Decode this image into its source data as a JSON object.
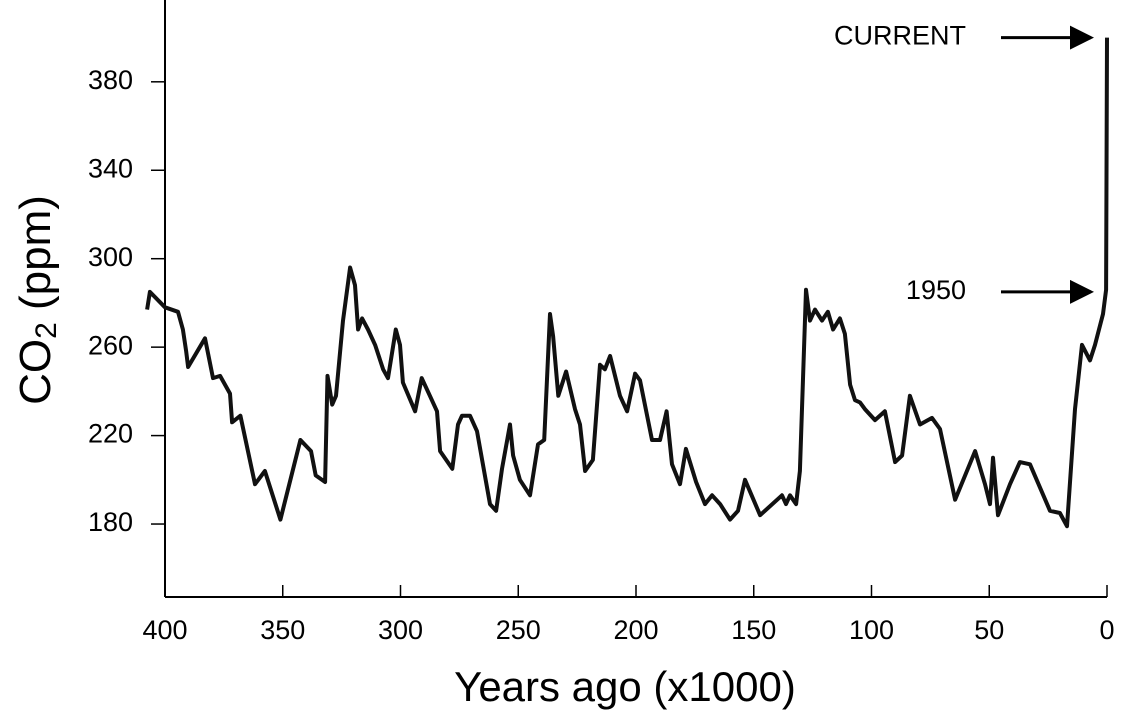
{
  "chart_data": {
    "type": "line",
    "x_label": "Years ago (x1000)",
    "y_label": [
      "CO",
      "2",
      " (ppm)"
    ],
    "xlim": [
      400,
      0
    ],
    "xticks": [
      400,
      350,
      300,
      250,
      200,
      150,
      100,
      50,
      0
    ],
    "ylim": [
      147,
      417
    ],
    "yticks": [
      180,
      220,
      260,
      300,
      340,
      380
    ],
    "color": "#111111",
    "x": [
      407.6,
      406.4,
      400,
      394.5,
      392.4,
      391,
      390.2,
      383,
      379.6,
      376.6,
      372.4,
      371.5,
      368,
      361.8,
      357.6,
      351,
      342.5,
      338,
      336,
      332,
      331,
      329,
      327.4,
      324.4,
      321.4,
      319.3,
      318,
      316.3,
      313.8,
      310.8,
      307.4,
      305.3,
      302,
      300.2,
      299,
      293.8,
      291,
      287.5,
      284.5,
      283.2,
      278,
      275.6,
      273.9,
      270.5,
      267.5,
      262,
      259.4,
      256.9,
      253.5,
      252.2,
      249.3,
      245,
      241.6,
      239,
      236.5,
      235.2,
      233,
      229.7,
      225.9,
      223.8,
      221.6,
      218.3,
      215.3,
      213.2,
      211,
      206.8,
      203.8,
      200.4,
      198.3,
      193.2,
      189.8,
      187,
      184.7,
      181.3,
      178.8,
      174.5,
      170.7,
      167.7,
      164.3,
      160.1,
      156.7,
      153.7,
      147.3,
      138,
      136.3,
      134.6,
      132,
      130.4,
      127.8,
      126.1,
      124,
      121,
      118.5,
      116.3,
      113.4,
      111.3,
      109.1,
      107,
      104.9,
      102.8,
      98.5,
      94.3,
      90,
      87,
      83.7,
      79.4,
      74.3,
      70.9,
      64.5,
      56,
      51.8,
      49.7,
      48.4,
      46.3,
      41.2,
      37,
      32.7,
      24.2,
      20,
      17,
      13.6,
      10.6,
      7.2,
      5.1,
      1.7,
      0.4,
      0
    ],
    "y": [
      277,
      285,
      278,
      276,
      268,
      258,
      251,
      264,
      246,
      247,
      239,
      226,
      229,
      198,
      204,
      182,
      218,
      213,
      202,
      199,
      247,
      234,
      238,
      272,
      296,
      288,
      268,
      273,
      268,
      261,
      250,
      246,
      268,
      261,
      244,
      231,
      246,
      238,
      231,
      213,
      205,
      225,
      229,
      229,
      222,
      189,
      186,
      205,
      225,
      211,
      200,
      193,
      216,
      218,
      275,
      265,
      238,
      249,
      232,
      225,
      204,
      209,
      252,
      250,
      256,
      238,
      231,
      248,
      245,
      218,
      218,
      231,
      207,
      198,
      214,
      199,
      189,
      193,
      189,
      182,
      186,
      200,
      184,
      193,
      189,
      193,
      189,
      204,
      286,
      272,
      277,
      272,
      276,
      268,
      273,
      266,
      243,
      236,
      235,
      232,
      227,
      231,
      208,
      211,
      238,
      225,
      228,
      223,
      191,
      213,
      198,
      189,
      210,
      184,
      198,
      208,
      207,
      186,
      185,
      179,
      232,
      261,
      254,
      261,
      275,
      286,
      400
    ],
    "annotations": [
      {
        "text": "CURRENT",
        "x": 0,
        "y": 400
      },
      {
        "text": "1950",
        "x": 0,
        "y": 285
      }
    ]
  }
}
